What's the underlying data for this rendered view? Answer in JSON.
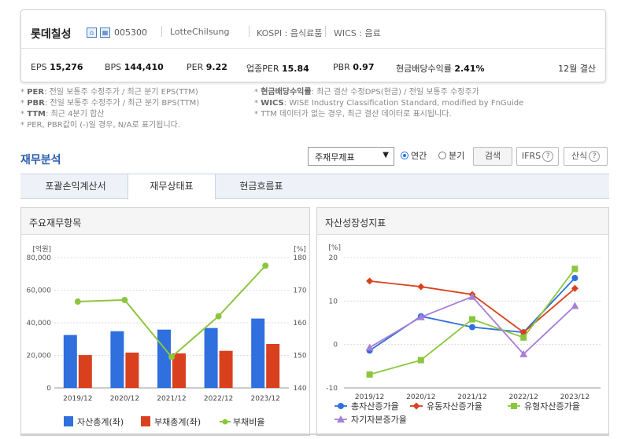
{
  "company": {
    "name": "롯데칠성",
    "code": "005300",
    "eng_name": "LotteChilsung",
    "market": "KOSPI : 음식료품",
    "wics": "WICS : 음료",
    "icon_colors": [
      "#4a7fc1",
      "#e8f0fb"
    ]
  },
  "metrics": [
    {
      "label": "EPS",
      "value": "15,276"
    },
    {
      "label": "BPS",
      "value": "144,410"
    },
    {
      "label": "PER",
      "value": "9.22"
    },
    {
      "label": "업종PER",
      "value": "15.84"
    },
    {
      "label": "PBR",
      "value": "0.97"
    },
    {
      "label": "현금배당수익률",
      "value": "2.41%"
    }
  ],
  "fiscal": "12월 결산",
  "notes_left": [
    {
      "key": "PER",
      "text": ": 전일 보통주 수정주가 / 최근 분기 EPS(TTM)"
    },
    {
      "key": "PBR",
      "text": ": 전일 보통주 수정주가 / 최근 분기 BPS(TTM)"
    },
    {
      "key": "TTM",
      "text": ": 최근 4분기 합산"
    },
    {
      "key": "",
      "text": "PER, PBR값이 (-)일 경우, N/A로 표기됩니다."
    }
  ],
  "notes_right": [
    {
      "key": "현금배당수익률",
      "text": ": 최근 결산 수정DPS(현금) / 전일 보통주 수정주가"
    },
    {
      "key": "WICS",
      "text": ": WISE Industry Classification Standard, modified by FnGuide"
    },
    {
      "key": "",
      "text": "TTM 데이터가 없는 경우, 최근 결산 데이터로 표시됩니다."
    }
  ],
  "section_title": "재무분석",
  "controls": {
    "select_value": "주재무제표",
    "radio_annual": "연간",
    "radio_quarter": "분기",
    "search": "검색",
    "ifrs": "IFRS",
    "calc": "산식"
  },
  "tabs": [
    "포괄손익계산서",
    "재무상태표",
    "현금흐름표"
  ],
  "active_tab": 1,
  "panels": {
    "left_title": "주요재무항목",
    "right_title": "자산성장성지표"
  },
  "chart_data": [
    {
      "type": "bar",
      "title": "주요재무항목",
      "categories": [
        "2019/12",
        "2020/12",
        "2021/12",
        "2022/12",
        "2023/12"
      ],
      "ylabel": "[억원]",
      "y2label": "[%]",
      "ylim": [
        0,
        80000
      ],
      "y2lim": [
        140,
        180
      ],
      "yticks": [
        "0",
        "20,000",
        "40,000",
        "60,000",
        "80,000"
      ],
      "y2ticks": [
        "140",
        "150",
        "160",
        "170",
        "180"
      ],
      "series": [
        {
          "name": "자산총계(좌)",
          "type": "bar",
          "color": "#2f6fde",
          "values": [
            32500,
            34800,
            35800,
            36800,
            42600
          ]
        },
        {
          "name": "부채총계(좌)",
          "type": "bar",
          "color": "#d9411e",
          "values": [
            20200,
            21700,
            21200,
            22800,
            27000
          ]
        },
        {
          "name": "부채비율",
          "type": "line",
          "axis": "right",
          "color": "#8cc63f",
          "values": [
            166.5,
            167.0,
            149.5,
            162.0,
            177.5
          ]
        }
      ],
      "grid": true,
      "legend": "bottom"
    },
    {
      "type": "line",
      "title": "자산성장성지표",
      "categories": [
        "2019/12",
        "2020/12",
        "2021/12",
        "2022/12",
        "2023/12"
      ],
      "ylabel": "[%]",
      "ylim": [
        -10,
        20
      ],
      "yticks": [
        "-10",
        "0",
        "10",
        "20"
      ],
      "series": [
        {
          "name": "총자산증가율",
          "marker": "circle",
          "color": "#2f6fde",
          "values": [
            -1.4,
            6.5,
            4.0,
            2.8,
            15.3
          ]
        },
        {
          "name": "유동자산증가율",
          "marker": "diamond",
          "color": "#d9411e",
          "values": [
            14.6,
            13.3,
            11.5,
            2.8,
            12.9
          ]
        },
        {
          "name": "유형자산증가율",
          "marker": "square",
          "color": "#8cc63f",
          "values": [
            -6.9,
            -3.6,
            5.8,
            1.6,
            17.4
          ]
        },
        {
          "name": "자기자본증가율",
          "marker": "triangle",
          "color": "#a77fd8",
          "values": [
            -0.7,
            6.3,
            11.0,
            -2.2,
            8.9
          ]
        }
      ],
      "grid": true,
      "legend": "bottom"
    }
  ]
}
